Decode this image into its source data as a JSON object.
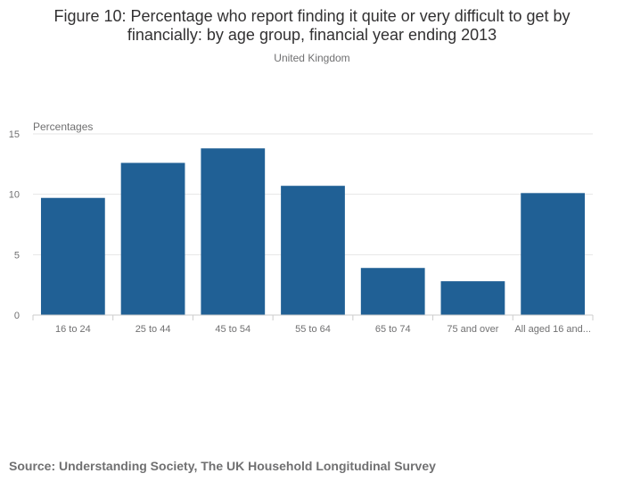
{
  "title": "Figure 10: Percentage who report finding it quite or very difficult to get by financially: by age group, financial year ending 2013",
  "subtitle": "United Kingdom",
  "source": "Source: Understanding Society, The UK Household Longitudinal Survey",
  "colors": {
    "bar": "#206095",
    "grid": "#e6e6e6",
    "axis": "#cccccc",
    "tick_text": "#707071"
  },
  "chart_data": {
    "type": "bar",
    "title": "Figure 10: Percentage who report finding it quite or very difficult to get by financially: by age group, financial year ending 2013",
    "ylabel": "Percentages",
    "xlabel": "",
    "categories": [
      "16 to 24",
      "25 to 44",
      "45 to 54",
      "55 to 64",
      "65 to 74",
      "75 and over",
      "All aged 16 and..."
    ],
    "values": [
      9.7,
      12.6,
      13.8,
      10.7,
      3.9,
      2.8,
      10.1
    ],
    "ylim": [
      0,
      15
    ],
    "yticks": [
      0,
      5,
      10,
      15
    ],
    "grid": true,
    "legend": "none"
  }
}
